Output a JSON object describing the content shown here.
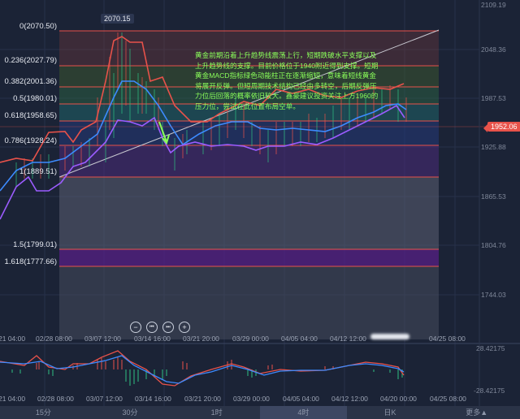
{
  "chart": {
    "peak_label": "2070.15",
    "current_price": "1952.06",
    "fib_levels": [
      {
        "label": "0(2070.50)"
      },
      {
        "label": "0.236(2027.79)"
      },
      {
        "label": "0.382(2001.36)"
      },
      {
        "label": "0.5(1980.01)"
      },
      {
        "label": "0.618(1958.65)"
      },
      {
        "label": "0.786(1928.24)"
      },
      {
        "label": "1(1889.51)"
      },
      {
        "label": "1.5(1799.01)"
      },
      {
        "label": "1.618(1777.66)"
      }
    ],
    "price_axis": [
      "2109.19",
      "2048.36",
      "1987.53",
      "1925.88",
      "1865.53",
      "1804.76",
      "1744.03"
    ],
    "time_axis": [
      "21 04:00",
      "02/28 08:00",
      "03/07 12:00",
      "03/14 16:00",
      "03/21 20:00",
      "03/29 00:00",
      "04/05 04:00",
      "04/12 12:00",
      "04/25 08:00"
    ],
    "annotation": "黄金前期沿着上升趋势线震荡上行，短期跌破水平支撑以及上升趋势线的支撑。目前价格位于1940附近得到支撑。短期黄金MACD指标绿色动能柱正在逐渐缩短，意味着短线黄金将展开反弹。但短周期技术结构已经由多转空，后期反弹压力位后回落的概率依旧较大。鑫豪建议投资关注上方1960的压力位，尝试在此位置布局空单。",
    "zoom_controls": {
      "zoom_out": "−",
      "prev": "⏮",
      "next": "⏭",
      "zoom_in": "+"
    }
  },
  "macd": {
    "upper": "28.42175",
    "lower": "-28.42175",
    "time_axis": [
      "21 04:00",
      "02/28 08:00",
      "03/07 12:00",
      "03/14 16:00",
      "03/21 20:00",
      "03/29 00:00",
      "04/05 04:00",
      "04/12 12:00",
      "04/20 00:00",
      "04/25 08:00"
    ]
  },
  "tabs": [
    {
      "label": "15分"
    },
    {
      "label": "30分"
    },
    {
      "label": "1时"
    },
    {
      "label": "4时",
      "active": true
    },
    {
      "label": "日K"
    },
    {
      "label": "更多▲"
    }
  ],
  "colors": {
    "up": "#e8524a",
    "down": "#2fbf82",
    "upper_band": "#e8524a",
    "middle_band": "#3d8bff",
    "lower_band": "#9b5cff",
    "annotation": "#8aff5a"
  }
}
